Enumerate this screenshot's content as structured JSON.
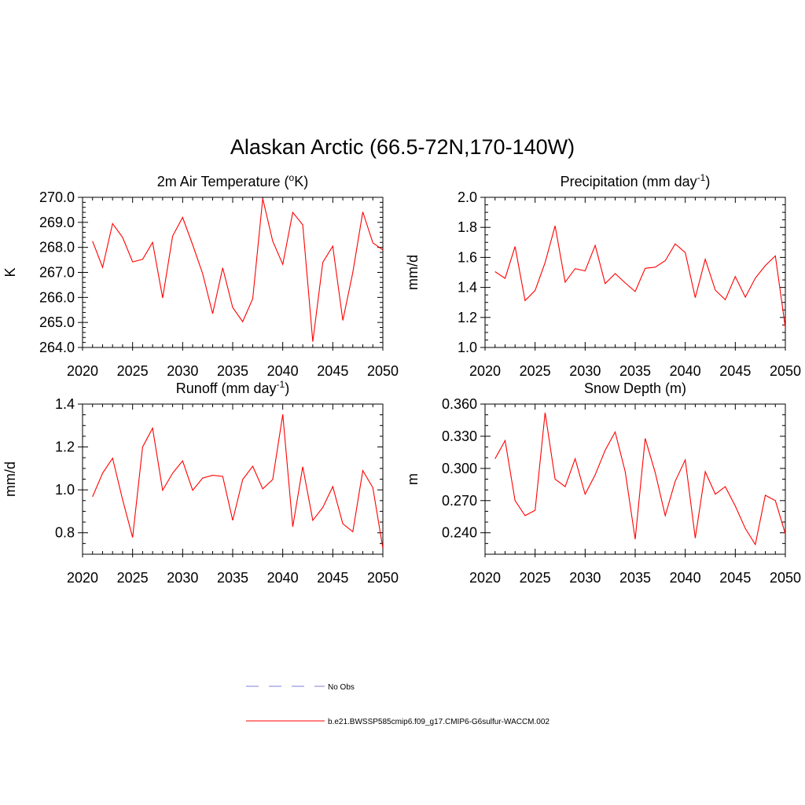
{
  "title": "Alaskan Arctic (66.5-72N,170-140W)",
  "legend": {
    "items": [
      {
        "label": "No Obs",
        "color": "#9999dd",
        "dash": true
      },
      {
        "label": "b.e21.BWSSP585cmip6.f09_g17.CMIP6-G6sulfur-WACCM.002",
        "color": "#ff0000",
        "dash": false
      }
    ]
  },
  "chart_data": [
    {
      "type": "line",
      "title_pre": "2m Air Temperature (",
      "title_sup": "o",
      "title_post": "K)",
      "ylabel": "K",
      "xlim": [
        2020,
        2050
      ],
      "ylim": [
        264.0,
        270.0
      ],
      "xticks": [
        2020,
        2025,
        2030,
        2035,
        2040,
        2045,
        2050
      ],
      "xtick_labels": [
        "2020",
        "2025",
        "2030",
        "2035",
        "2040",
        "2045",
        "2050"
      ],
      "yticks": [
        264.0,
        265.0,
        266.0,
        267.0,
        268.0,
        269.0,
        270.0
      ],
      "ytick_labels": [
        "264.0",
        "265.0",
        "266.0",
        "267.0",
        "268.0",
        "269.0",
        "270.0"
      ],
      "yminor": 5,
      "xminor": 5,
      "color": "#ff0000",
      "x": [
        2021,
        2022,
        2023,
        2024,
        2025,
        2026,
        2027,
        2028,
        2029,
        2030,
        2031,
        2032,
        2033,
        2034,
        2035,
        2036,
        2037,
        2038,
        2039,
        2040,
        2041,
        2042,
        2043,
        2044,
        2045,
        2046,
        2047,
        2048,
        2049,
        2050
      ],
      "y": [
        268.25,
        267.2,
        268.95,
        268.4,
        267.42,
        267.52,
        268.2,
        265.98,
        268.45,
        269.2,
        268.1,
        266.95,
        265.35,
        267.18,
        265.6,
        265.03,
        265.95,
        269.95,
        268.25,
        267.32,
        269.4,
        268.9,
        264.23,
        267.4,
        268.05,
        265.08,
        267.0,
        269.42,
        268.18,
        267.9
      ]
    },
    {
      "type": "line",
      "title_pre": "Precipitation (mm day",
      "title_sup": "-1",
      "title_post": ")",
      "ylabel": "mm/d",
      "xlim": [
        2020,
        2050
      ],
      "ylim": [
        1.0,
        2.0
      ],
      "xticks": [
        2020,
        2025,
        2030,
        2035,
        2040,
        2045,
        2050
      ],
      "xtick_labels": [
        "2020",
        "2025",
        "2030",
        "2035",
        "2040",
        "2045",
        "2050"
      ],
      "yticks": [
        1.0,
        1.2,
        1.4,
        1.6,
        1.8,
        2.0
      ],
      "ytick_labels": [
        "1.0",
        "1.2",
        "1.4",
        "1.6",
        "1.8",
        "2.0"
      ],
      "yminor": 4,
      "xminor": 5,
      "color": "#ff0000",
      "x": [
        2021,
        2022,
        2023,
        2024,
        2025,
        2026,
        2027,
        2028,
        2029,
        2030,
        2031,
        2032,
        2033,
        2034,
        2035,
        2036,
        2037,
        2038,
        2039,
        2040,
        2041,
        2042,
        2043,
        2044,
        2045,
        2046,
        2047,
        2048,
        2049,
        2050
      ],
      "y": [
        1.505,
        1.46,
        1.672,
        1.312,
        1.38,
        1.565,
        1.81,
        1.435,
        1.525,
        1.51,
        1.68,
        1.425,
        1.492,
        1.43,
        1.372,
        1.527,
        1.535,
        1.578,
        1.69,
        1.632,
        1.332,
        1.588,
        1.382,
        1.318,
        1.472,
        1.335,
        1.462,
        1.545,
        1.61,
        1.132
      ]
    },
    {
      "type": "line",
      "title_pre": "Runoff (mm day",
      "title_sup": "-1",
      "title_post": ")",
      "ylabel": "mm/d",
      "xlim": [
        2020,
        2050
      ],
      "ylim": [
        0.7,
        1.4
      ],
      "xticks": [
        2020,
        2025,
        2030,
        2035,
        2040,
        2045,
        2050
      ],
      "xtick_labels": [
        "2020",
        "2025",
        "2030",
        "2035",
        "2040",
        "2045",
        "2050"
      ],
      "yticks": [
        0.8,
        1.0,
        1.2,
        1.4
      ],
      "ytick_labels": [
        "0.8",
        "1.0",
        "1.2",
        "1.4"
      ],
      "yminor": 4,
      "xminor": 5,
      "color": "#ff0000",
      "x": [
        2021,
        2022,
        2023,
        2024,
        2025,
        2026,
        2027,
        2028,
        2029,
        2030,
        2031,
        2032,
        2033,
        2034,
        2035,
        2036,
        2037,
        2038,
        2039,
        2040,
        2041,
        2042,
        2043,
        2044,
        2045,
        2046,
        2047,
        2048,
        2049,
        2050
      ],
      "y": [
        0.968,
        1.078,
        1.148,
        0.955,
        0.778,
        1.2,
        1.288,
        0.998,
        1.078,
        1.135,
        0.998,
        1.055,
        1.068,
        1.063,
        0.858,
        1.048,
        1.11,
        1.005,
        1.048,
        1.352,
        0.828,
        1.108,
        0.858,
        0.918,
        1.015,
        0.842,
        0.805,
        1.09,
        1.01,
        0.728
      ]
    },
    {
      "type": "line",
      "title_pre": "Snow Depth (m)",
      "title_sup": "",
      "title_post": "",
      "ylabel": "m",
      "xlim": [
        2020,
        2050
      ],
      "ylim": [
        0.22,
        0.36
      ],
      "xticks": [
        2020,
        2025,
        2030,
        2035,
        2040,
        2045,
        2050
      ],
      "xtick_labels": [
        "2020",
        "2025",
        "2030",
        "2035",
        "2040",
        "2045",
        "2050"
      ],
      "yticks": [
        0.24,
        0.27,
        0.3,
        0.33,
        0.36
      ],
      "ytick_labels": [
        "0.240",
        "0.270",
        "0.300",
        "0.330",
        "0.360"
      ],
      "yminor": 3,
      "xminor": 5,
      "color": "#ff0000",
      "x": [
        2021,
        2022,
        2023,
        2024,
        2025,
        2026,
        2027,
        2028,
        2029,
        2030,
        2031,
        2032,
        2033,
        2034,
        2035,
        2036,
        2037,
        2038,
        2039,
        2040,
        2041,
        2042,
        2043,
        2044,
        2045,
        2046,
        2047,
        2048,
        2049,
        2050
      ],
      "y": [
        0.309,
        0.326,
        0.27,
        0.256,
        0.261,
        0.352,
        0.29,
        0.283,
        0.309,
        0.276,
        0.294,
        0.317,
        0.334,
        0.297,
        0.234,
        0.328,
        0.296,
        0.256,
        0.288,
        0.308,
        0.235,
        0.297,
        0.276,
        0.283,
        0.265,
        0.244,
        0.229,
        0.275,
        0.27,
        0.239
      ]
    }
  ]
}
